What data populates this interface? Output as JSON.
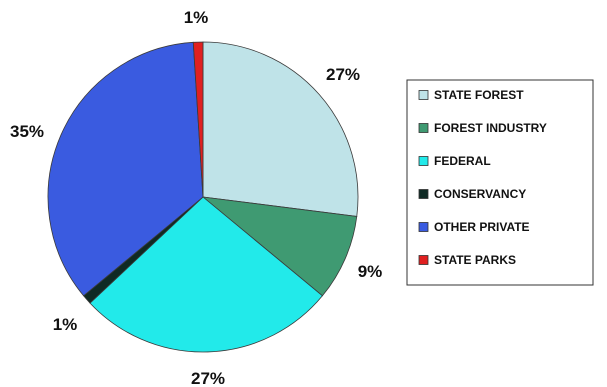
{
  "chart_data": {
    "type": "pie",
    "title": "",
    "legend_position": "right",
    "slices": [
      {
        "name": "STATE FOREST",
        "value": 27,
        "label": "27%",
        "color": "#bfe3e8"
      },
      {
        "name": "FOREST INDUSTRY",
        "value": 9,
        "label": "9%",
        "color": "#3f9a72"
      },
      {
        "name": "FEDERAL",
        "value": 27,
        "label": "27%",
        "color": "#22eaea"
      },
      {
        "name": "CONSERVANCY",
        "value": 1,
        "label": "1%",
        "color": "#0f2a24"
      },
      {
        "name": "OTHER PRIVATE",
        "value": 35,
        "label": "35%",
        "color": "#3a5be0"
      },
      {
        "name": "STATE PARKS",
        "value": 1,
        "label": "1%",
        "color": "#e02020"
      }
    ]
  }
}
